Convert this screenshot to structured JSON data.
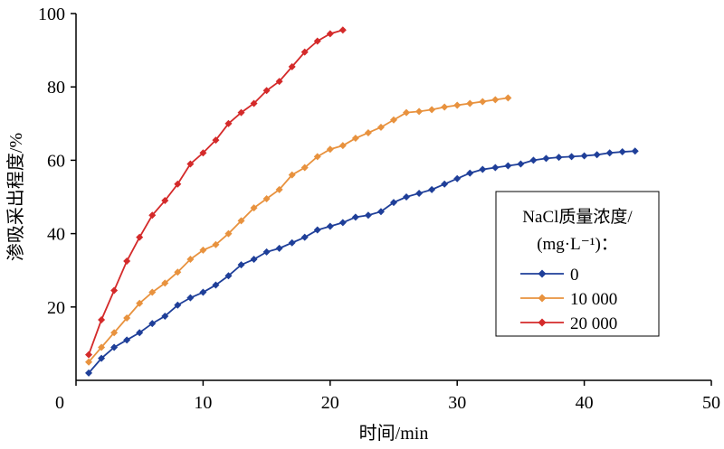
{
  "chart_data": {
    "type": "line",
    "title": "",
    "xlabel": "时间/min",
    "ylabel": "渗吸采出程度/%",
    "xlim": [
      0,
      50
    ],
    "ylim": [
      0,
      100
    ],
    "xticks": [
      0,
      10,
      20,
      30,
      40,
      50
    ],
    "yticks": [
      20,
      40,
      60,
      80,
      100
    ],
    "grid": false,
    "legend": {
      "title_line1": "NaCl质量浓度/",
      "title_line2": "(mg·L⁻¹)：",
      "placement": "right"
    },
    "series": [
      {
        "name": "0",
        "color": "#1f3f99",
        "x": [
          1,
          2,
          3,
          4,
          5,
          6,
          7,
          8,
          9,
          10,
          11,
          12,
          13,
          14,
          15,
          16,
          17,
          18,
          19,
          20,
          21,
          22,
          23,
          24,
          25,
          26,
          27,
          28,
          29,
          30,
          31,
          32,
          33,
          34,
          35,
          36,
          37,
          38,
          39,
          40,
          41,
          42,
          43,
          44
        ],
        "y": [
          2,
          6,
          9,
          11,
          13,
          15.5,
          17.5,
          20.5,
          22.5,
          24,
          26,
          28.5,
          31.5,
          33,
          35,
          36,
          37.5,
          39,
          41,
          42,
          43,
          44.5,
          45,
          46,
          48.5,
          50,
          51,
          52,
          53.5,
          55,
          56.5,
          57.5,
          58,
          58.5,
          59,
          60,
          60.5,
          60.8,
          61,
          61.2,
          61.5,
          62,
          62.3,
          62.5
        ]
      },
      {
        "name": "10 000",
        "color": "#e8923e",
        "x": [
          1,
          2,
          3,
          4,
          5,
          6,
          7,
          8,
          9,
          10,
          11,
          12,
          13,
          14,
          15,
          16,
          17,
          18,
          19,
          20,
          21,
          22,
          23,
          24,
          25,
          26,
          27,
          28,
          29,
          30,
          31,
          32,
          33,
          34
        ],
        "y": [
          5,
          9,
          13,
          17,
          21,
          24,
          26.5,
          29.5,
          33,
          35.5,
          37,
          40,
          43.5,
          47,
          49.5,
          52,
          56,
          58,
          61,
          63,
          64,
          66,
          67.5,
          69,
          71,
          73,
          73.3,
          73.8,
          74.5,
          75,
          75.5,
          76,
          76.5,
          77
        ]
      },
      {
        "name": "20 000",
        "color": "#d42a2a",
        "x": [
          1,
          2,
          3,
          4,
          5,
          6,
          7,
          8,
          9,
          10,
          11,
          12,
          13,
          14,
          15,
          16,
          17,
          18,
          19,
          20,
          21
        ],
        "y": [
          7,
          16.5,
          24.5,
          32.5,
          39,
          45,
          49,
          53.5,
          59,
          62,
          65.5,
          70,
          73,
          75.5,
          79,
          81.5,
          85.5,
          89.5,
          92.5,
          94.5,
          95.5
        ]
      }
    ]
  }
}
